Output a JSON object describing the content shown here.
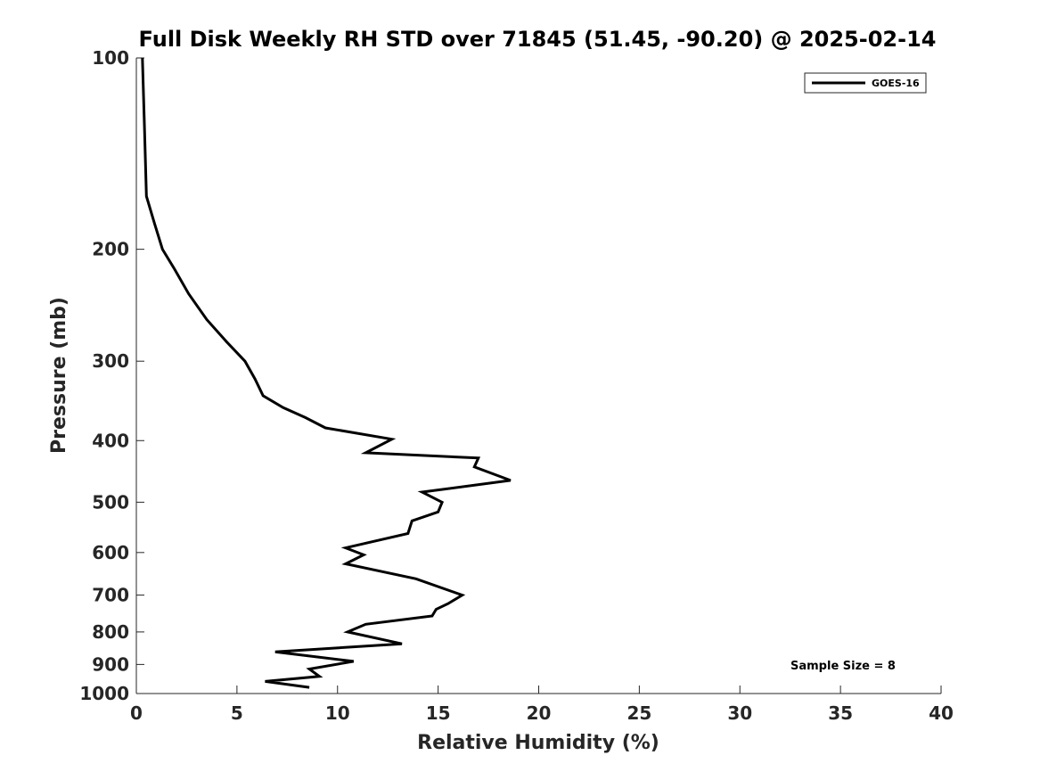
{
  "chart_data": {
    "type": "line",
    "title": "Full Disk Weekly RH STD over 71845 (51.45, -90.20) @ 2025-02-14",
    "xlabel": "Relative Humidity (%)",
    "ylabel": "Pressure (mb)",
    "xlim": [
      0,
      40
    ],
    "ylim": [
      100,
      1000
    ],
    "y_scale": "log",
    "y_reversed": true,
    "xticks": [
      0,
      5,
      10,
      15,
      20,
      25,
      30,
      35,
      40
    ],
    "yticks": [
      100,
      200,
      300,
      400,
      500,
      600,
      700,
      800,
      900,
      1000
    ],
    "grid": false,
    "legend_position": "top-right",
    "series": [
      {
        "name": "GOES-16",
        "color": "#000000",
        "x": [
          0.3,
          0.4,
          0.5,
          0.9,
          1.3,
          1.9,
          2.6,
          3.5,
          4.5,
          5.4,
          5.9,
          6.3,
          7.3,
          8.4,
          9.4,
          12.7,
          11.4,
          17.0,
          16.8,
          18.6,
          14.2,
          15.2,
          15.0,
          13.7,
          13.5,
          10.4,
          11.3,
          10.4,
          13.9,
          16.2,
          15.5,
          14.9,
          14.7,
          11.4,
          10.5,
          13.2,
          6.9,
          10.8,
          8.6,
          9.1,
          6.4,
          8.6
        ],
        "y": [
          100,
          127,
          165,
          182,
          200,
          215,
          235,
          258,
          280,
          300,
          320,
          340,
          355,
          368,
          382,
          398,
          418,
          426,
          440,
          462,
          482,
          500,
          518,
          535,
          560,
          590,
          605,
          625,
          660,
          700,
          722,
          737,
          755,
          778,
          800,
          835,
          860,
          890,
          915,
          940,
          957,
          978
        ]
      }
    ],
    "annotations": [
      {
        "text": "Sample Size = 8"
      }
    ]
  }
}
